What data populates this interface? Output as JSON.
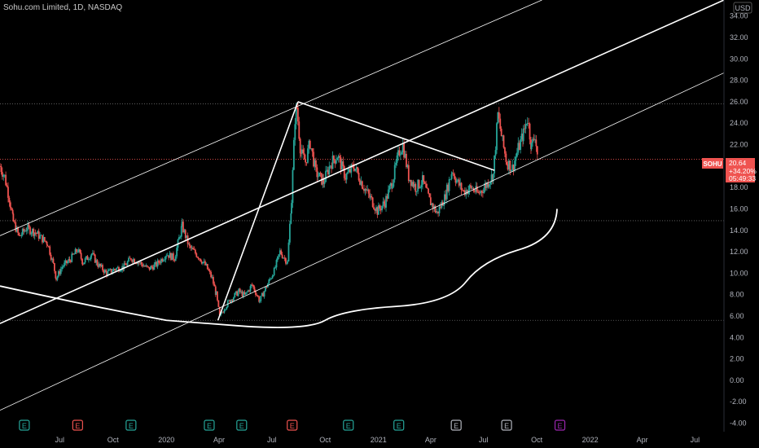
{
  "header": {
    "title": "Sohu.com Limited, 1D, NASDAQ"
  },
  "price_scale": {
    "currency": "USD"
  },
  "last_price": {
    "symbol": "SOHU",
    "price": "20.64",
    "change": "+34.20%",
    "countdown": "05:49:33"
  },
  "colors": {
    "background": "#000000",
    "up": "#26a69a",
    "down": "#ef5350",
    "drawing": "#ffffff",
    "level": "#ef5350"
  },
  "event_markers": [
    {
      "label": "E",
      "kind": "earnings-beat",
      "color": "#26a69a",
      "date": "2019-05-01"
    },
    {
      "label": "E",
      "kind": "earnings-miss",
      "color": "#ef5350",
      "date": "2019-08-01"
    },
    {
      "label": "E",
      "kind": "earnings-beat",
      "color": "#26a69a",
      "date": "2019-11-01"
    },
    {
      "label": "E",
      "kind": "earnings-beat",
      "color": "#26a69a",
      "date": "2020-03-15"
    },
    {
      "label": "E",
      "kind": "earnings-beat",
      "color": "#26a69a",
      "date": "2020-05-10"
    },
    {
      "label": "E",
      "kind": "earnings-miss",
      "color": "#ef5350",
      "date": "2020-08-05"
    },
    {
      "label": "E",
      "kind": "earnings-beat",
      "color": "#26a69a",
      "date": "2020-11-10"
    },
    {
      "label": "E",
      "kind": "earnings-beat",
      "color": "#26a69a",
      "date": "2021-02-05"
    },
    {
      "label": "E",
      "kind": "earnings-neutral",
      "color": "#b2b5be",
      "date": "2021-05-15"
    },
    {
      "label": "E",
      "kind": "earnings-neutral",
      "color": "#b2b5be",
      "date": "2021-08-10"
    },
    {
      "label": "E",
      "kind": "earnings-future",
      "color": "#9c27b0",
      "date": "2021-11-10"
    }
  ],
  "chart_data": {
    "type": "line",
    "title": "Sohu.com Limited, 1D, NASDAQ",
    "xlabel": "",
    "ylabel": "",
    "ylim": [
      -4.8,
      35.5
    ],
    "xlim": [
      "2019-03-20",
      "2022-08-20"
    ],
    "y_ticks": [
      "34.00",
      "32.00",
      "30.00",
      "28.00",
      "26.00",
      "24.00",
      "22.00",
      "20.00",
      "18.00",
      "16.00",
      "14.00",
      "12.00",
      "10.00",
      "8.00",
      "6.00",
      "4.00",
      "2.00",
      "0.00",
      "-2.00",
      "-4.00"
    ],
    "x_ticks": [
      {
        "label": "Jul",
        "date": "2019-07-01"
      },
      {
        "label": "Oct",
        "date": "2019-10-01"
      },
      {
        "label": "2020",
        "date": "2020-01-01"
      },
      {
        "label": "Apr",
        "date": "2020-04-01"
      },
      {
        "label": "Jul",
        "date": "2020-07-01"
      },
      {
        "label": "Oct",
        "date": "2020-10-01"
      },
      {
        "label": "2021",
        "date": "2021-01-01"
      },
      {
        "label": "Apr",
        "date": "2021-04-01"
      },
      {
        "label": "Jul",
        "date": "2021-07-01"
      },
      {
        "label": "Oct",
        "date": "2021-10-01"
      },
      {
        "label": "2022",
        "date": "2022-01-01"
      },
      {
        "label": "Apr",
        "date": "2022-04-01"
      },
      {
        "label": "Jul",
        "date": "2022-07-01"
      }
    ],
    "series": [
      {
        "points": [
          [
            "2019-03-20",
            20.0
          ],
          [
            "2019-03-28",
            19.0
          ],
          [
            "2019-04-05",
            17.0
          ],
          [
            "2019-04-12",
            14.8
          ],
          [
            "2019-04-22",
            13.4
          ],
          [
            "2019-05-05",
            14.2
          ],
          [
            "2019-05-20",
            13.8
          ],
          [
            "2019-06-01",
            13.2
          ],
          [
            "2019-06-10",
            12.8
          ],
          [
            "2019-06-20",
            10.8
          ],
          [
            "2019-06-25",
            9.5
          ],
          [
            "2019-07-05",
            10.6
          ],
          [
            "2019-07-18",
            11.2
          ],
          [
            "2019-08-01",
            12.2
          ],
          [
            "2019-08-10",
            11.0
          ],
          [
            "2019-08-25",
            11.8
          ],
          [
            "2019-09-05",
            10.8
          ],
          [
            "2019-09-20",
            10.0
          ],
          [
            "2019-10-05",
            10.4
          ],
          [
            "2019-10-20",
            10.6
          ],
          [
            "2019-11-01",
            11.4
          ],
          [
            "2019-11-15",
            11.0
          ],
          [
            "2019-12-01",
            10.4
          ],
          [
            "2019-12-15",
            10.8
          ],
          [
            "2020-01-01",
            11.8
          ],
          [
            "2020-01-15",
            11.4
          ],
          [
            "2020-01-28",
            14.4
          ],
          [
            "2020-02-10",
            12.4
          ],
          [
            "2020-02-25",
            11.6
          ],
          [
            "2020-03-10",
            10.6
          ],
          [
            "2020-03-20",
            9.5
          ],
          [
            "2020-03-27",
            8.0
          ],
          [
            "2020-04-02",
            5.9
          ],
          [
            "2020-04-10",
            6.8
          ],
          [
            "2020-04-22",
            7.6
          ],
          [
            "2020-05-05",
            8.3
          ],
          [
            "2020-05-15",
            7.9
          ],
          [
            "2020-05-28",
            8.9
          ],
          [
            "2020-06-10",
            7.4
          ],
          [
            "2020-06-22",
            8.8
          ],
          [
            "2020-07-05",
            10.2
          ],
          [
            "2020-07-15",
            12.0
          ],
          [
            "2020-07-28",
            11.0
          ],
          [
            "2020-08-01",
            14.5
          ],
          [
            "2020-08-04",
            16.8
          ],
          [
            "2020-08-10",
            24.5
          ],
          [
            "2020-08-13",
            25.5
          ],
          [
            "2020-08-20",
            21.2
          ],
          [
            "2020-08-28",
            20.4
          ],
          [
            "2020-09-05",
            22.2
          ],
          [
            "2020-09-15",
            19.4
          ],
          [
            "2020-09-28",
            18.5
          ],
          [
            "2020-10-10",
            20.2
          ],
          [
            "2020-10-22",
            21.0
          ],
          [
            "2020-11-05",
            19.0
          ],
          [
            "2020-11-20",
            20.0
          ],
          [
            "2020-12-05",
            18.2
          ],
          [
            "2020-12-18",
            17.0
          ],
          [
            "2020-12-30",
            15.8
          ],
          [
            "2021-01-12",
            16.6
          ],
          [
            "2021-01-25",
            18.6
          ],
          [
            "2021-02-06",
            21.4
          ],
          [
            "2021-02-12",
            22.0
          ],
          [
            "2021-02-22",
            19.0
          ],
          [
            "2021-03-06",
            18.0
          ],
          [
            "2021-03-18",
            18.6
          ],
          [
            "2021-03-30",
            16.8
          ],
          [
            "2021-04-12",
            15.6
          ],
          [
            "2021-04-25",
            17.0
          ],
          [
            "2021-05-08",
            19.6
          ],
          [
            "2021-05-18",
            18.4
          ],
          [
            "2021-05-28",
            17.6
          ],
          [
            "2021-06-10",
            18.0
          ],
          [
            "2021-06-22",
            17.4
          ],
          [
            "2021-07-05",
            18.2
          ],
          [
            "2021-07-18",
            19.2
          ],
          [
            "2021-07-26",
            24.8
          ],
          [
            "2021-08-03",
            22.2
          ],
          [
            "2021-08-10",
            20.4
          ],
          [
            "2021-08-20",
            19.8
          ],
          [
            "2021-08-30",
            21.6
          ],
          [
            "2021-09-08",
            23.0
          ],
          [
            "2021-09-15",
            24.5
          ],
          [
            "2021-09-22",
            21.8
          ],
          [
            "2021-09-28",
            23.0
          ],
          [
            "2021-10-03",
            20.64
          ]
        ]
      }
    ],
    "horizontal_levels": [
      25.8,
      20.64,
      14.9,
      5.6
    ],
    "drawings": {
      "pitchfork": {
        "pivot_start": [
          "2020-03-30",
          5.6
        ],
        "pivot_top": [
          "2020-08-15",
          26.0
        ],
        "pivot_mid": [
          "2021-02-10",
          22.3
        ],
        "median_end": [
          "2022-08-20",
          35.5
        ],
        "upper_end": [
          "2021-10-10",
          35.5
        ],
        "lower_end": [
          "2022-08-20",
          28.7
        ],
        "channel_left_upper": [
          "2019-03-20",
          13.5
        ],
        "channel_left_median": [
          "2019-03-20",
          5.3
        ],
        "channel_left_lower": [
          "2019-03-20",
          -2.8
        ]
      },
      "trendline": {
        "start": [
          "2020-08-15",
          26.0
        ],
        "end": [
          "2021-07-20",
          19.6
        ]
      },
      "arc": {
        "points": [
          [
            "2019-03-20",
            8.8
          ],
          [
            "2019-08-01",
            7.2
          ],
          [
            "2020-01-01",
            5.6
          ],
          [
            "2020-05-01",
            5.1
          ],
          [
            "2020-10-01",
            5.6
          ],
          [
            "2021-02-01",
            6.9
          ],
          [
            "2021-06-01",
            9.2
          ],
          [
            "2021-09-01",
            12.2
          ],
          [
            "2021-11-05",
            16.0
          ]
        ]
      }
    },
    "grid": false,
    "legend": "none"
  }
}
